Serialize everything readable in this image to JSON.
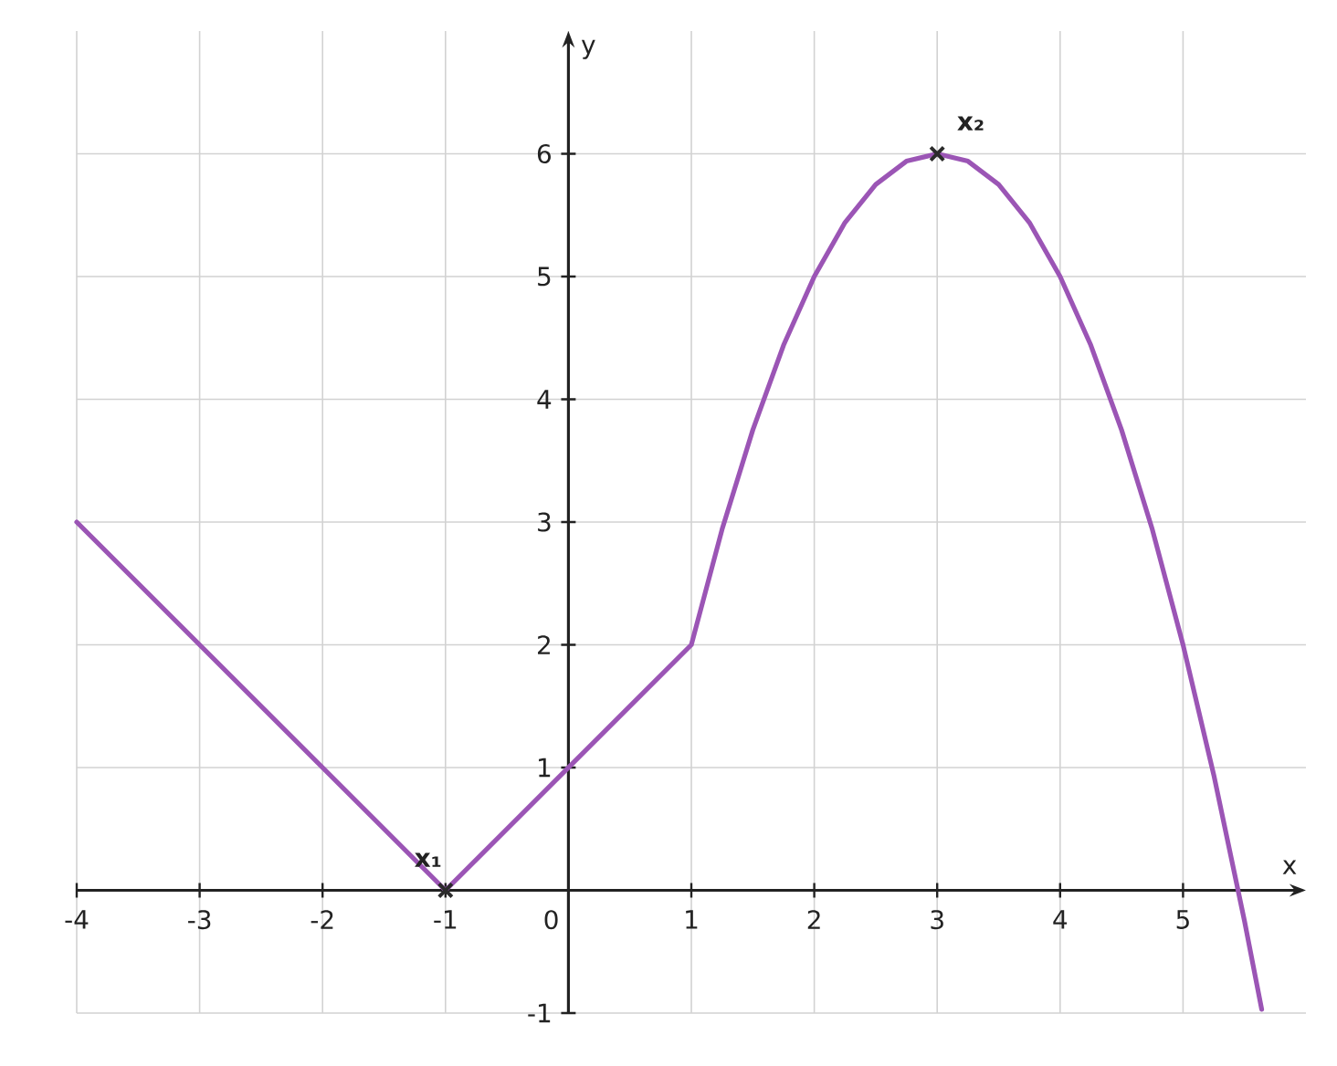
{
  "chart_data": {
    "type": "line",
    "xlabel": "x",
    "ylabel": "y",
    "xlim": [
      -4,
      6
    ],
    "ylim": [
      -1,
      7
    ],
    "xticks": [
      -4,
      -3,
      -2,
      -1,
      {
        "value": 0,
        "label": "0"
      },
      1,
      2,
      3,
      4,
      5
    ],
    "yticks": [
      -1,
      1,
      2,
      3,
      4,
      5,
      6
    ],
    "grid": true,
    "line_style": "solid",
    "series": [
      {
        "color": "#9b55b5",
        "marker": "none",
        "x": [
          -4,
          -1,
          1,
          1.25,
          1.5,
          1.75,
          2,
          2.25,
          2.5,
          2.75,
          3,
          3.25,
          3.5,
          3.75,
          4,
          4.25,
          4.5,
          4.75,
          5,
          5.25,
          5.5,
          5.64
        ],
        "values": [
          3,
          0,
          2,
          2.94,
          3.75,
          4.44,
          5,
          5.44,
          5.75,
          5.94,
          6,
          5.94,
          5.75,
          5.44,
          5,
          4.44,
          3.75,
          2.94,
          2,
          0.94,
          -0.25,
          -0.97
        ]
      },
      {
        "type": "scatter",
        "color": "#2b2b2b",
        "marker": "cross",
        "x": [
          -1,
          3
        ],
        "values": [
          0,
          6
        ]
      }
    ],
    "annotations": [
      {
        "text": "x₁",
        "x": -1,
        "y": 0
      },
      {
        "text": "x₂",
        "x": 3,
        "y": 6
      }
    ]
  }
}
